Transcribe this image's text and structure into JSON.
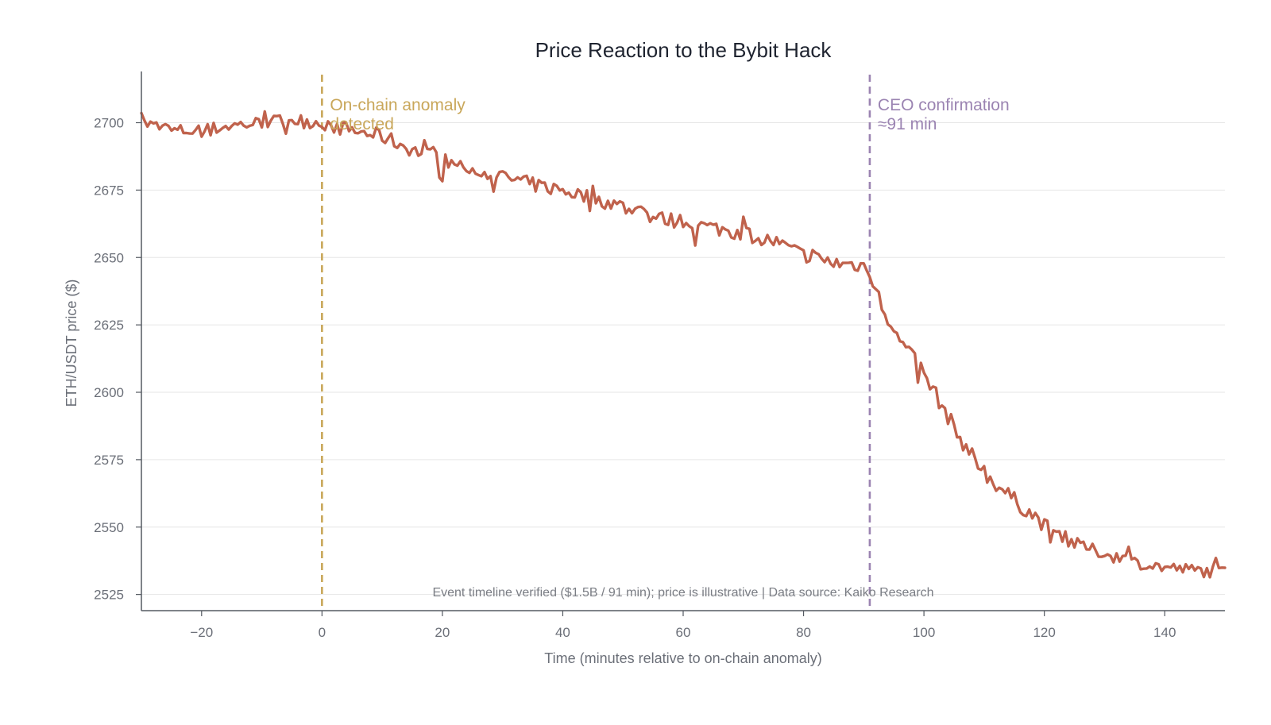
{
  "chart_data": {
    "type": "line",
    "title": "Price Reaction to the Bybit Hack",
    "xlabel": "Time (minutes relative to on-chain anomaly)",
    "ylabel": "ETH/USDT price ($)",
    "xlim": [
      -30,
      150
    ],
    "ylim": [
      2519,
      2719
    ],
    "xticks": [
      -20,
      0,
      20,
      40,
      60,
      80,
      100,
      120,
      140
    ],
    "yticks": [
      2525,
      2550,
      2575,
      2600,
      2625,
      2650,
      2675,
      2700
    ],
    "grid": "horizontal",
    "series": [
      {
        "color": "#c0624c",
        "x": [
          -30,
          -25,
          -20,
          -15,
          -10,
          -5,
          0,
          5,
          10,
          15,
          20,
          25,
          30,
          35,
          40,
          45,
          50,
          55,
          60,
          65,
          70,
          75,
          80,
          85,
          90,
          91,
          93,
          95,
          97,
          100,
          103,
          106,
          110,
          115,
          120,
          125,
          130,
          135,
          140,
          145,
          150
        ],
        "y": [
          2700,
          2697,
          2697,
          2699,
          2700,
          2701,
          2700,
          2697,
          2695,
          2690,
          2686,
          2683,
          2680,
          2677,
          2675,
          2672,
          2669,
          2665,
          2663,
          2661,
          2659,
          2656,
          2651,
          2648,
          2647,
          2645,
          2633,
          2622,
          2616,
          2607,
          2595,
          2583,
          2570,
          2560,
          2551,
          2544,
          2540,
          2537,
          2535,
          2534,
          2533
        ]
      }
    ],
    "events": [
      {
        "x": 0,
        "label_line1": "On-chain anomaly",
        "label_line2": "detected",
        "color": "#c9a75a"
      },
      {
        "x": 91,
        "label_line1": "CEO confirmation",
        "label_line2": "≈91 min",
        "color": "#9b84b2"
      }
    ],
    "footnote": "Event timeline verified ($1.5B / 91 min); price is illustrative | Data source: Kaiko Research"
  }
}
